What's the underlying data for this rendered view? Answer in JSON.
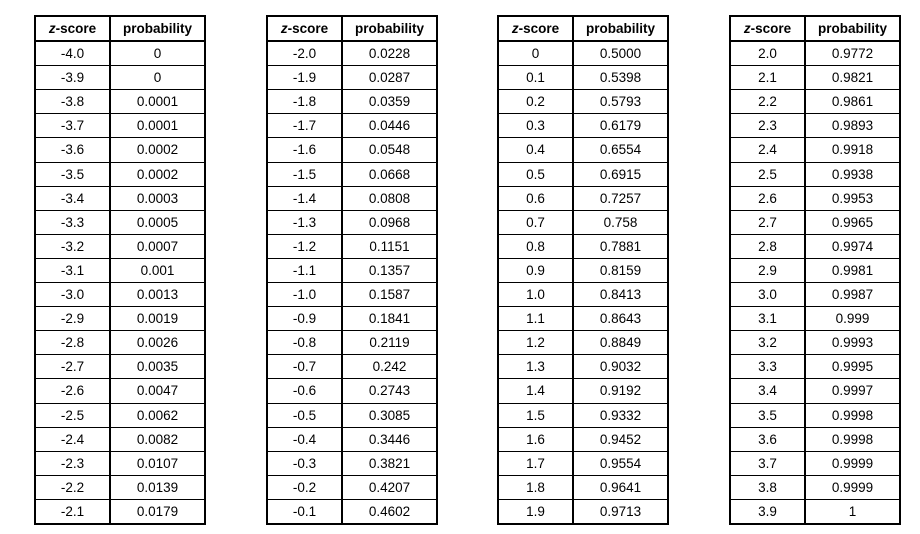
{
  "header": {
    "z_italic": "z",
    "z_rest": "-score",
    "probability": "probability"
  },
  "tables": [
    {
      "rows": [
        [
          "-4.0",
          "0"
        ],
        [
          "-3.9",
          "0"
        ],
        [
          "-3.8",
          "0.0001"
        ],
        [
          "-3.7",
          "0.0001"
        ],
        [
          "-3.6",
          "0.0002"
        ],
        [
          "-3.5",
          "0.0002"
        ],
        [
          "-3.4",
          "0.0003"
        ],
        [
          "-3.3",
          "0.0005"
        ],
        [
          "-3.2",
          "0.0007"
        ],
        [
          "-3.1",
          "0.001"
        ],
        [
          "-3.0",
          "0.0013"
        ],
        [
          "-2.9",
          "0.0019"
        ],
        [
          "-2.8",
          "0.0026"
        ],
        [
          "-2.7",
          "0.0035"
        ],
        [
          "-2.6",
          "0.0047"
        ],
        [
          "-2.5",
          "0.0062"
        ],
        [
          "-2.4",
          "0.0082"
        ],
        [
          "-2.3",
          "0.0107"
        ],
        [
          "-2.2",
          "0.0139"
        ],
        [
          "-2.1",
          "0.0179"
        ]
      ]
    },
    {
      "rows": [
        [
          "-2.0",
          "0.0228"
        ],
        [
          "-1.9",
          "0.0287"
        ],
        [
          "-1.8",
          "0.0359"
        ],
        [
          "-1.7",
          "0.0446"
        ],
        [
          "-1.6",
          "0.0548"
        ],
        [
          "-1.5",
          "0.0668"
        ],
        [
          "-1.4",
          "0.0808"
        ],
        [
          "-1.3",
          "0.0968"
        ],
        [
          "-1.2",
          "0.1151"
        ],
        [
          "-1.1",
          "0.1357"
        ],
        [
          "-1.0",
          "0.1587"
        ],
        [
          "-0.9",
          "0.1841"
        ],
        [
          "-0.8",
          "0.2119"
        ],
        [
          "-0.7",
          "0.242"
        ],
        [
          "-0.6",
          "0.2743"
        ],
        [
          "-0.5",
          "0.3085"
        ],
        [
          "-0.4",
          "0.3446"
        ],
        [
          "-0.3",
          "0.3821"
        ],
        [
          "-0.2",
          "0.4207"
        ],
        [
          "-0.1",
          "0.4602"
        ]
      ]
    },
    {
      "rows": [
        [
          "0",
          "0.5000"
        ],
        [
          "0.1",
          "0.5398"
        ],
        [
          "0.2",
          "0.5793"
        ],
        [
          "0.3",
          "0.6179"
        ],
        [
          "0.4",
          "0.6554"
        ],
        [
          "0.5",
          "0.6915"
        ],
        [
          "0.6",
          "0.7257"
        ],
        [
          "0.7",
          "0.758"
        ],
        [
          "0.8",
          "0.7881"
        ],
        [
          "0.9",
          "0.8159"
        ],
        [
          "1.0",
          "0.8413"
        ],
        [
          "1.1",
          "0.8643"
        ],
        [
          "1.2",
          "0.8849"
        ],
        [
          "1.3",
          "0.9032"
        ],
        [
          "1.4",
          "0.9192"
        ],
        [
          "1.5",
          "0.9332"
        ],
        [
          "1.6",
          "0.9452"
        ],
        [
          "1.7",
          "0.9554"
        ],
        [
          "1.8",
          "0.9641"
        ],
        [
          "1.9",
          "0.9713"
        ]
      ]
    },
    {
      "rows": [
        [
          "2.0",
          "0.9772"
        ],
        [
          "2.1",
          "0.9821"
        ],
        [
          "2.2",
          "0.9861"
        ],
        [
          "2.3",
          "0.9893"
        ],
        [
          "2.4",
          "0.9918"
        ],
        [
          "2.5",
          "0.9938"
        ],
        [
          "2.6",
          "0.9953"
        ],
        [
          "2.7",
          "0.9965"
        ],
        [
          "2.8",
          "0.9974"
        ],
        [
          "2.9",
          "0.9981"
        ],
        [
          "3.0",
          "0.9987"
        ],
        [
          "3.1",
          "0.999"
        ],
        [
          "3.2",
          "0.9993"
        ],
        [
          "3.3",
          "0.9995"
        ],
        [
          "3.4",
          "0.9997"
        ],
        [
          "3.5",
          "0.9998"
        ],
        [
          "3.6",
          "0.9998"
        ],
        [
          "3.7",
          "0.9999"
        ],
        [
          "3.8",
          "0.9999"
        ],
        [
          "3.9",
          "1"
        ]
      ]
    }
  ]
}
